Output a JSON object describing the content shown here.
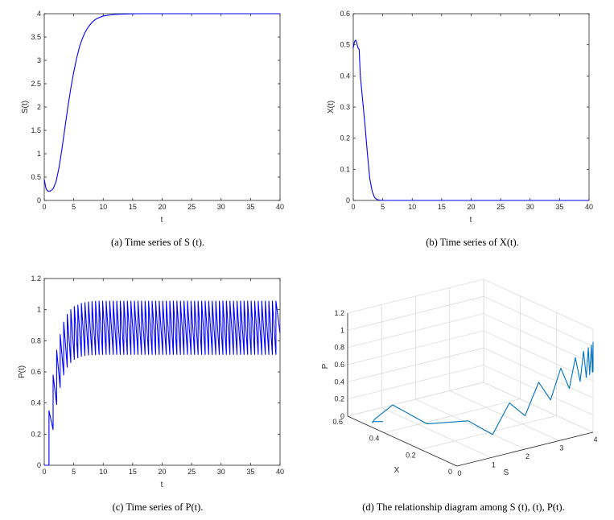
{
  "chart_data": [
    {
      "id": "a",
      "type": "line",
      "caption": "(a)  Time series of S (t).",
      "xlabel": "t",
      "ylabel": "S(t)",
      "xlim": [
        0,
        40
      ],
      "ylim": [
        0,
        4
      ],
      "xticks": [
        "0",
        "5",
        "10",
        "15",
        "20",
        "25",
        "30",
        "35",
        "40"
      ],
      "yticks": [
        "0",
        "0.5",
        "1",
        "1.5",
        "2",
        "2.5",
        "3",
        "3.5",
        "4"
      ],
      "color": "#0000ff",
      "series": [
        {
          "name": "S(t)",
          "x": [
            0,
            0.3,
            0.6,
            1,
            1.5,
            2,
            2.5,
            3,
            3.5,
            4,
            4.5,
            5,
            5.5,
            6,
            6.5,
            7,
            7.5,
            8,
            8.5,
            9,
            10,
            11,
            12,
            13,
            14,
            15,
            17,
            20,
            25,
            30,
            40
          ],
          "y": [
            0.45,
            0.25,
            0.2,
            0.2,
            0.25,
            0.4,
            0.7,
            1.1,
            1.55,
            2.0,
            2.4,
            2.75,
            3.05,
            3.3,
            3.48,
            3.62,
            3.72,
            3.8,
            3.86,
            3.9,
            3.95,
            3.97,
            3.985,
            3.99,
            3.995,
            3.998,
            4,
            4,
            4,
            4,
            4
          ]
        }
      ]
    },
    {
      "id": "b",
      "type": "line",
      "caption": "(b)  Time series of X(t).",
      "xlabel": "t",
      "ylabel": "X(t)",
      "xlim": [
        0,
        40
      ],
      "ylim": [
        0,
        0.6
      ],
      "xticks": [
        "0",
        "5",
        "10",
        "15",
        "20",
        "25",
        "30",
        "35",
        "40"
      ],
      "yticks": [
        "0",
        "0.1",
        "0.2",
        "0.3",
        "0.4",
        "0.5",
        "0.6"
      ],
      "color": "#0000ff",
      "series": [
        {
          "name": "X(t)",
          "x": [
            0,
            0.2,
            0.4,
            0.6,
            0.8,
            1,
            1.2,
            1.6,
            2,
            2.4,
            2.8,
            3.2,
            3.6,
            4,
            4.5,
            5,
            6,
            10,
            20,
            30,
            40
          ],
          "y": [
            0.49,
            0.51,
            0.515,
            0.505,
            0.49,
            0.485,
            0.4,
            0.32,
            0.24,
            0.15,
            0.07,
            0.03,
            0.01,
            0.003,
            0.001,
            0,
            0,
            0,
            0,
            0,
            0
          ]
        }
      ]
    },
    {
      "id": "c",
      "type": "line",
      "caption": "(c)  Time series of P(t).",
      "xlabel": "t",
      "ylabel": "P(t)",
      "xlim": [
        0,
        40
      ],
      "ylim": [
        0,
        1.2
      ],
      "xticks": [
        "0",
        "5",
        "10",
        "15",
        "20",
        "25",
        "30",
        "35",
        "40"
      ],
      "yticks": [
        "0",
        "0.2",
        "0.4",
        "0.6",
        "0.8",
        "1",
        "1.2"
      ],
      "color": "#0000ff",
      "series": [
        {
          "name": "P(t)",
          "x": [
            0,
            0.8,
            0.8,
            1.5,
            1.5,
            2.1,
            2.1,
            2.7,
            2.7,
            3.3,
            3.3,
            3.9,
            3.9,
            4.5,
            4.5,
            5.1,
            5.1,
            5.7,
            5.7,
            6.3,
            6.3,
            6.9,
            6.9,
            7.5,
            7.5,
            8.1,
            8.1,
            8.7,
            8.7,
            9.3,
            9.3,
            9.9,
            9.9,
            10.5,
            10.5,
            11.1,
            11.1,
            11.7,
            11.7,
            12.3,
            12.3,
            12.9,
            12.9,
            13.5,
            13.5,
            14.1,
            14.1,
            14.7,
            14.7,
            15.3,
            15.3,
            15.9,
            15.9,
            16.5,
            16.5,
            17.1,
            17.1,
            17.7,
            17.7,
            18.3,
            18.3,
            18.9,
            18.9,
            19.5,
            19.5,
            20.1,
            20.1,
            20.7,
            20.7,
            21.3,
            21.3,
            21.9,
            21.9,
            22.5,
            22.5,
            23.1,
            23.1,
            23.7,
            23.7,
            24.3,
            24.3,
            24.9,
            24.9,
            25.5,
            25.5,
            26.1,
            26.1,
            26.7,
            26.7,
            27.3,
            27.3,
            27.9,
            27.9,
            28.5,
            28.5,
            29.1,
            29.1,
            29.7,
            29.7,
            30.3,
            30.3,
            30.9,
            30.9,
            31.5,
            31.5,
            32.1,
            32.1,
            32.7,
            32.7,
            33.3,
            33.3,
            33.9,
            33.9,
            34.5,
            34.5,
            35.1,
            35.1,
            35.7,
            35.7,
            36.3,
            36.3,
            36.9,
            36.9,
            37.5,
            37.5,
            38.1,
            38.1,
            38.7,
            38.7,
            39.3,
            39.3,
            40
          ],
          "y": [
            0,
            0,
            0.35,
            0.23,
            0.58,
            0.39,
            0.74,
            0.5,
            0.84,
            0.58,
            0.92,
            0.63,
            0.97,
            0.66,
            1.0,
            0.68,
            1.02,
            0.69,
            1.03,
            0.7,
            1.04,
            0.705,
            1.045,
            0.708,
            1.05,
            0.71,
            1.052,
            0.71,
            1.054,
            0.712,
            1.055,
            0.712,
            1.055,
            0.712,
            1.055,
            0.712,
            1.055,
            0.712,
            1.055,
            0.712,
            1.055,
            0.712,
            1.055,
            0.712,
            1.055,
            0.712,
            1.055,
            0.712,
            1.055,
            0.712,
            1.055,
            0.712,
            1.055,
            0.712,
            1.055,
            0.712,
            1.055,
            0.712,
            1.055,
            0.712,
            1.055,
            0.712,
            1.055,
            0.712,
            1.055,
            0.712,
            1.055,
            0.712,
            1.055,
            0.712,
            1.055,
            0.712,
            1.055,
            0.712,
            1.055,
            0.712,
            1.055,
            0.712,
            1.055,
            0.712,
            1.055,
            0.712,
            1.055,
            0.712,
            1.055,
            0.712,
            1.055,
            0.712,
            1.055,
            0.712,
            1.055,
            0.712,
            1.055,
            0.712,
            1.055,
            0.712,
            1.055,
            0.712,
            1.055,
            0.712,
            1.055,
            0.712,
            1.055,
            0.712,
            1.055,
            0.712,
            1.055,
            0.712,
            1.055,
            0.712,
            1.055,
            0.712,
            1.055,
            0.712,
            1.055,
            0.712,
            1.055,
            0.712,
            1.055,
            0.712,
            1.055,
            0.712,
            1.055,
            0.712,
            1.055,
            0.712,
            1.055,
            0.712,
            1.055,
            0.712,
            1.055,
            0.85
          ]
        }
      ]
    },
    {
      "id": "d",
      "type": "line3d",
      "caption": "(d)  The relationship diagram among S (t), (t), P(t).",
      "xlabel": "X",
      "ylabel": "S",
      "zlabel": "P",
      "xlim": [
        0,
        0.6
      ],
      "slim": [
        0,
        4
      ],
      "zlim": [
        0,
        1.2
      ],
      "xticks": [
        "0",
        "0.2",
        "0.4",
        "0.6"
      ],
      "sticks": [
        "0",
        "1",
        "2",
        "3",
        "4"
      ],
      "zticks": [
        "0",
        "0.2",
        "0.4",
        "0.6",
        "0.8",
        "1",
        "1.2"
      ],
      "color": "#0072bd",
      "series": [
        {
          "name": "trajectory",
          "S": [
            0.45,
            0.25,
            0.2,
            0.2,
            0.2,
            0.25,
            0.25,
            0.4,
            0.4,
            0.7,
            0.7,
            1.1,
            1.1,
            1.55,
            1.55,
            2.0,
            2.0,
            2.4,
            2.4,
            2.75,
            2.75,
            3.05,
            3.05,
            3.3,
            3.3,
            3.48,
            3.48,
            3.62,
            3.62,
            3.72,
            3.72,
            3.8,
            3.8,
            3.86,
            3.86,
            3.9,
            3.9,
            3.95,
            3.95,
            3.98,
            3.98,
            4.0,
            4.0,
            4.0,
            4.0,
            4.0,
            4.0,
            4.0,
            4.0
          ],
          "X": [
            0.49,
            0.51,
            0.5,
            0.49,
            0.49,
            0.4,
            0.4,
            0.24,
            0.24,
            0.07,
            0.07,
            0.01,
            0.01,
            0.002,
            0.002,
            0,
            0,
            0,
            0,
            0,
            0,
            0,
            0,
            0,
            0,
            0,
            0,
            0,
            0,
            0,
            0,
            0,
            0,
            0,
            0,
            0,
            0,
            0,
            0,
            0,
            0,
            0,
            0,
            0,
            0,
            0,
            0,
            0,
            0
          ],
          "P": [
            0,
            0,
            0,
            0.05,
            0.05,
            0.3,
            0.3,
            0.22,
            0.22,
            0.39,
            0.39,
            0.25,
            0.25,
            0.58,
            0.58,
            0.39,
            0.39,
            0.74,
            0.74,
            0.5,
            0.5,
            0.84,
            0.84,
            0.58,
            0.58,
            0.92,
            0.92,
            0.63,
            0.63,
            0.97,
            0.97,
            0.66,
            0.66,
            1.0,
            1.0,
            0.68,
            0.68,
            1.02,
            1.02,
            0.7,
            0.7,
            1.04,
            1.04,
            0.71,
            0.71,
            1.05,
            1.05,
            0.71,
            1.05
          ]
        }
      ]
    }
  ]
}
